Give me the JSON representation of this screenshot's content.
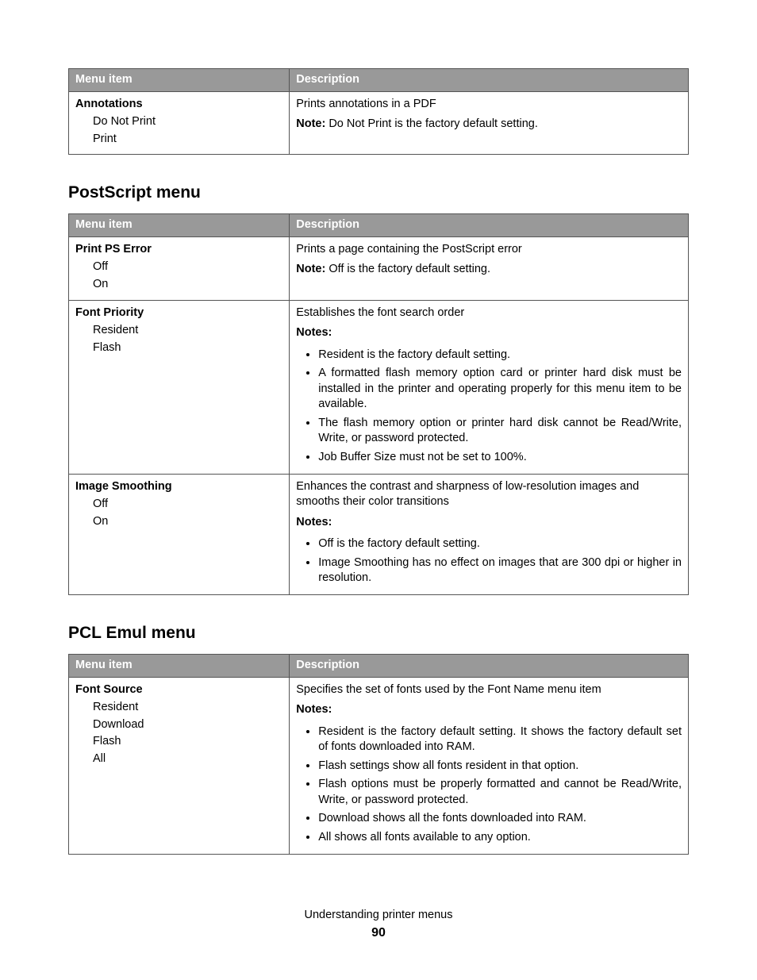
{
  "colors": {
    "page_bg": "#ffffff",
    "text": "#000000",
    "table_border": "#555555",
    "header_bg": "#999999",
    "header_text": "#ffffff"
  },
  "typography": {
    "body_fontsize_pt": 11,
    "section_heading_fontsize_pt": 16,
    "section_heading_weight": "bold"
  },
  "column_headers": {
    "menu_item": "Menu item",
    "description": "Description"
  },
  "tables": [
    {
      "id": "pdf_tail",
      "heading": null,
      "rows": [
        {
          "item": "Annotations",
          "options": [
            "Do Not Print",
            "Print"
          ],
          "desc_plain": "Prints annotations in a PDF",
          "note_inline": {
            "label": "Note:",
            "text": " Do Not Print is the factory default setting."
          },
          "notes": null
        }
      ]
    },
    {
      "id": "postscript",
      "heading": "PostScript menu",
      "rows": [
        {
          "item": "Print PS Error",
          "options": [
            "Off",
            "On"
          ],
          "desc_plain": "Prints a page containing the PostScript error",
          "note_inline": {
            "label": "Note:",
            "text": " Off is the factory default setting."
          },
          "notes": null
        },
        {
          "item": "Font Priority",
          "options": [
            "Resident",
            "Flash"
          ],
          "desc_plain": "Establishes the font search order",
          "note_inline": null,
          "notes": {
            "label": "Notes:",
            "items": [
              "Resident is the factory default setting.",
              "A formatted flash memory option card or printer hard disk must be installed in the printer and operating properly for this menu item to be available.",
              "The flash memory option or printer hard disk cannot be Read/Write, Write, or password protected.",
              "Job Buffer Size must not be set to 100%."
            ]
          }
        },
        {
          "item": "Image Smoothing",
          "options": [
            "Off",
            "On"
          ],
          "desc_plain": "Enhances the contrast and sharpness of low-resolution images and smooths their color transitions",
          "note_inline": null,
          "notes": {
            "label": "Notes:",
            "items": [
              "Off is the factory default setting.",
              "Image Smoothing has no effect on images that are 300 dpi or higher in resolution."
            ]
          }
        }
      ]
    },
    {
      "id": "pcl_emul",
      "heading": "PCL Emul menu",
      "rows": [
        {
          "item": "Font Source",
          "options": [
            "Resident",
            "Download",
            "Flash",
            "All"
          ],
          "desc_plain": "Specifies the set of fonts used by the Font Name menu item",
          "note_inline": null,
          "notes": {
            "label": "Notes:",
            "items": [
              "Resident is the factory default setting. It shows the factory default set of fonts downloaded into RAM.",
              "Flash settings show all fonts resident in that option.",
              "Flash options must be properly formatted and cannot be Read/Write, Write, or password protected.",
              "Download shows all the fonts downloaded into RAM.",
              "All shows all fonts available to any option."
            ]
          }
        }
      ]
    }
  ],
  "footer": {
    "text": "Understanding printer menus",
    "page_number": "90"
  }
}
